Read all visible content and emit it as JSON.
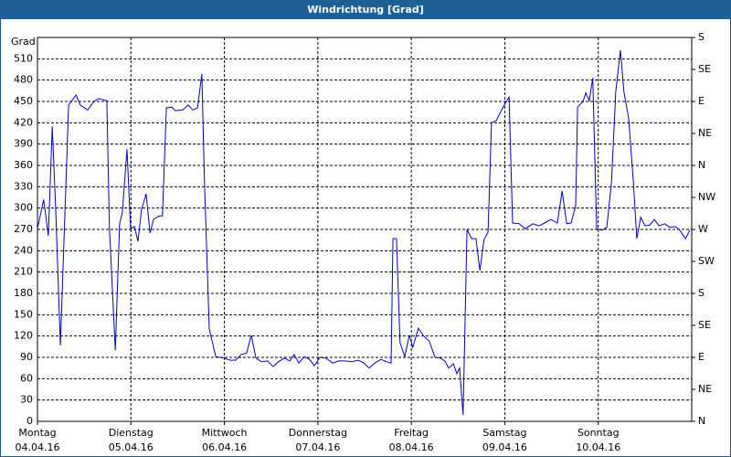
{
  "chart_data": {
    "type": "line",
    "title": "Windrichtung [Grad]",
    "ylabel": "Grad",
    "xlim": [
      0,
      168
    ],
    "xticks": [
      {
        "value": 0,
        "label": "Montag",
        "sublabel": "04.04.16"
      },
      {
        "value": 24,
        "label": "Dienstag",
        "sublabel": "05.04.16"
      },
      {
        "value": 48,
        "label": "Mittwoch",
        "sublabel": "06.04.16"
      },
      {
        "value": 72,
        "label": "Donnerstag",
        "sublabel": "07.04.16"
      },
      {
        "value": 96,
        "label": "Freitag",
        "sublabel": "08.04.16"
      },
      {
        "value": 120,
        "label": "Samstag",
        "sublabel": "09.04.16"
      },
      {
        "value": 144,
        "label": "Sonntag",
        "sublabel": "10.04.16"
      }
    ],
    "ylim": [
      0,
      540
    ],
    "yticks": [
      0,
      30,
      60,
      90,
      120,
      150,
      180,
      210,
      240,
      270,
      300,
      330,
      360,
      390,
      420,
      450,
      480,
      510
    ],
    "y2lim": [
      0,
      540
    ],
    "y2ticks": [
      {
        "value": 0,
        "label": "N"
      },
      {
        "value": 45,
        "label": "NE"
      },
      {
        "value": 90,
        "label": "E"
      },
      {
        "value": 135,
        "label": "SE"
      },
      {
        "value": 180,
        "label": "S"
      },
      {
        "value": 225,
        "label": "SW"
      },
      {
        "value": 270,
        "label": "W"
      },
      {
        "value": 315,
        "label": "NW"
      },
      {
        "value": 360,
        "label": "N"
      },
      {
        "value": 405,
        "label": "NE"
      },
      {
        "value": 450,
        "label": "E"
      },
      {
        "value": 495,
        "label": "SE"
      },
      {
        "value": 540,
        "label": "S"
      }
    ],
    "grid": true,
    "series": [
      {
        "color": "#0000c0",
        "x": [
          0,
          1.6,
          2.8,
          3.8,
          4.7,
          5.9,
          8,
          9.9,
          11,
          12.9,
          14.5,
          15.7,
          17.8,
          18.5,
          20,
          21.1,
          21.8,
          23,
          23.9,
          24.9,
          25.8,
          26.7,
          27.9,
          28.9,
          29.8,
          31.2,
          32.1,
          33.1,
          34.5,
          35.4,
          37.3,
          38.7,
          39.9,
          41.1,
          42.2,
          42.9,
          44.1,
          45.8,
          47.9,
          49.5,
          50.9,
          52.3,
          53.7,
          54.9,
          56.1,
          57.5,
          59.1,
          60.5,
          61.9,
          63.4,
          64.8,
          65.9,
          67.1,
          68.5,
          69.9,
          71.1,
          72.5,
          74.1,
          75.8,
          77.4,
          79.1,
          80.7,
          82.4,
          83.8,
          85.2,
          86.6,
          88.2,
          89.6,
          90.8,
          91.3,
          92.2,
          93.1,
          94.3,
          95.5,
          96.4,
          97.8,
          99.2,
          100.6,
          102.1,
          103.5,
          104.6,
          105.6,
          106.8,
          107.7,
          108.4,
          109.3,
          110.3,
          111.5,
          112.6,
          113.6,
          114.7,
          115.7,
          116.6,
          117.8,
          118.7,
          119.9,
          121.1,
          122,
          123.7,
          125.3,
          127.2,
          128.8,
          130.2,
          131.9,
          133.5,
          134.7,
          135.9,
          137,
          138.2,
          138.7,
          140.1,
          140.8,
          141.7,
          142.6,
          143.6,
          145,
          146.2,
          147.4,
          148.5,
          149.7,
          150.6,
          151.8,
          153,
          153.9,
          154.9,
          156,
          157.2,
          158.4,
          159.6,
          161,
          162.4,
          163.8,
          164.9,
          166.4,
          167.5
        ],
        "values": [
          271,
          312,
          261,
          415,
          297,
          107,
          445,
          459,
          445,
          438,
          450,
          454,
          451,
          271,
          100,
          278,
          294,
          383,
          271,
          274,
          253,
          297,
          320,
          265,
          284,
          289,
          289,
          441,
          442,
          437,
          438,
          445,
          438,
          441,
          489,
          336,
          130,
          91,
          89,
          86,
          86,
          94,
          96,
          121,
          89,
          84,
          85,
          77,
          84,
          89,
          85,
          94,
          82,
          91,
          87,
          78,
          90,
          89,
          82,
          85,
          85,
          84,
          86,
          82,
          75,
          82,
          87,
          84,
          82,
          257,
          257,
          111,
          91,
          121,
          104,
          131,
          120,
          113,
          90,
          89,
          85,
          75,
          81,
          67,
          75,
          9,
          270,
          257,
          257,
          212,
          256,
          266,
          420,
          423,
          433,
          445,
          456,
          279,
          278,
          271,
          278,
          275,
          279,
          284,
          279,
          324,
          278,
          279,
          303,
          442,
          450,
          462,
          451,
          483,
          271,
          269,
          273,
          336,
          464,
          522,
          464,
          426,
          338,
          257,
          287,
          275,
          276,
          284,
          275,
          278,
          273,
          274,
          269,
          257,
          269
        ]
      }
    ]
  }
}
